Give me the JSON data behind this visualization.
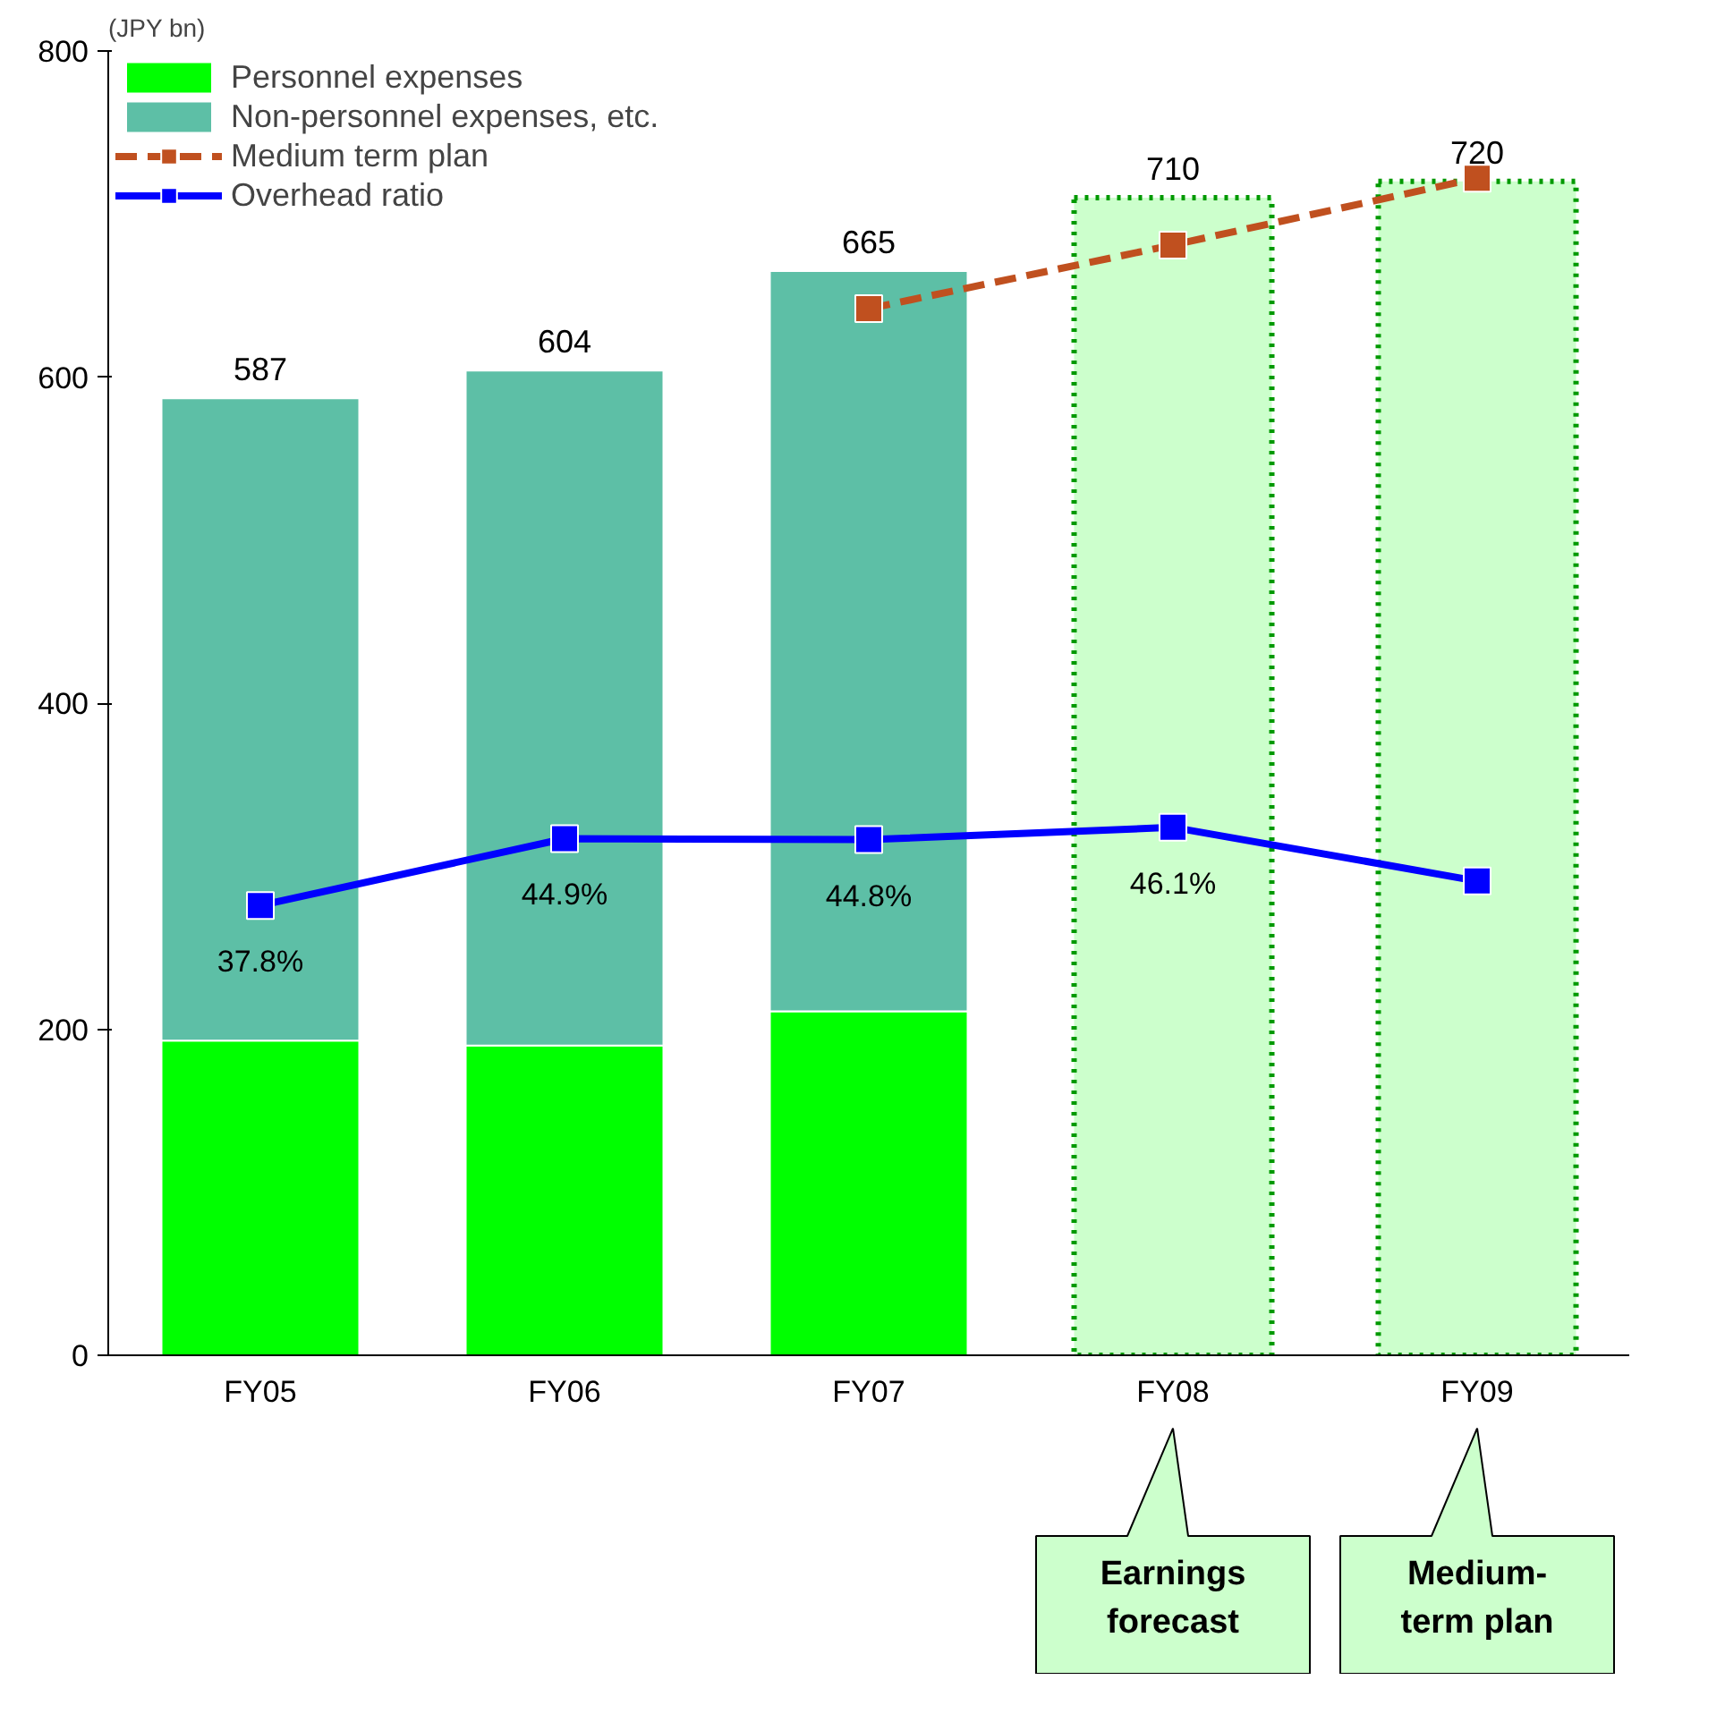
{
  "chart_data": {
    "type": "bar",
    "stacked": true,
    "categories": [
      "FY05",
      "FY06",
      "FY07",
      "FY08",
      "FY09"
    ],
    "series": [
      {
        "name": "Personnel expenses",
        "color": "#00ff00",
        "values": [
          193,
          190,
          211,
          null,
          null
        ]
      },
      {
        "name": "Non-personnel expenses, etc.",
        "color": "#5dbfa6",
        "values": [
          394,
          414,
          454,
          null,
          null
        ]
      },
      {
        "color": "#ccffcc",
        "values": [
          null,
          null,
          null,
          710,
          720
        ],
        "line_style": "dotted"
      },
      {
        "name": "Medium term plan",
        "type": "line",
        "color": "#c0501f",
        "values": [
          null,
          null,
          642,
          681,
          722
        ],
        "line_style": "dashed"
      },
      {
        "name": "Overhead ratio",
        "type": "line",
        "color": "#0000ff",
        "axis": "y2",
        "values": [
          37.8,
          44.9,
          44.8,
          46.1,
          40.4
        ],
        "value_labels": [
          "37.8%",
          "44.9%",
          "44.8%",
          "46.1%",
          null
        ],
        "line_style": "solid"
      }
    ],
    "totals": [
      "587",
      "604",
      "665",
      "710",
      "720"
    ],
    "ylim": [
      0,
      800
    ],
    "yticks": [
      0,
      200,
      400,
      600,
      800
    ],
    "y2lim": [
      -10,
      128.6
    ],
    "marker": "square",
    "legend": "top left",
    "annotations": [
      "(JPY bn)",
      "Earnings forecast",
      "Medium-term plan"
    ]
  }
}
